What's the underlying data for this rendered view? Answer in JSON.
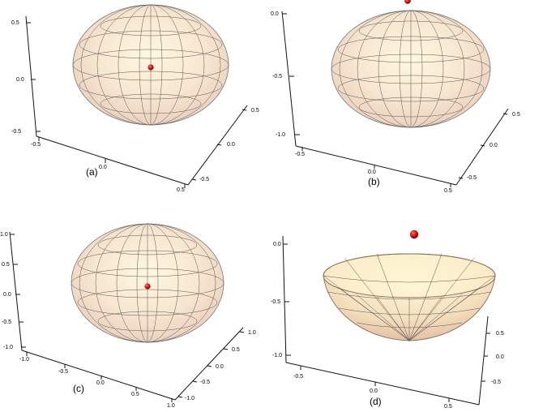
{
  "panels": [
    {
      "caption": "(a)",
      "shape": "ellipsoid",
      "vertical_ticks": [
        "0.5",
        "0.0",
        "-0.5"
      ],
      "front_axis_ticks": [
        "-0.5",
        "0.0",
        "0.5"
      ],
      "side_axis_ticks": [
        "0.5",
        "0.0",
        "-0.5"
      ],
      "point": "red sphere near center"
    },
    {
      "caption": "(b)",
      "shape": "ellipsoid",
      "vertical_ticks": [
        "0.0",
        "-0.5",
        "-1.0"
      ],
      "front_axis_ticks": [
        "-0.5",
        "0.0",
        "0.5"
      ],
      "side_axis_ticks": [
        "0.5",
        "0.0",
        "-0.5"
      ],
      "point": "red sphere at top"
    },
    {
      "caption": "(c)",
      "shape": "ellipsoid",
      "vertical_ticks": [
        "1.0",
        "0.5",
        "0.0",
        "-0.5",
        "-1.0"
      ],
      "front_axis_ticks": [
        "-1.0",
        "-0.5",
        "0.0",
        "0.5",
        "1.0"
      ],
      "side_axis_ticks": [
        "1.0",
        "0.5",
        "0.0",
        "-0.5",
        "-1.0"
      ],
      "point": "red sphere near center"
    },
    {
      "caption": "(d)",
      "shape": "bowl",
      "vertical_ticks": [
        "0.0",
        "-0.5",
        "-1.0"
      ],
      "front_axis_ticks": [
        "-0.5",
        "0.0",
        "0.5"
      ],
      "side_axis_ticks": [
        "0.5",
        "0.0",
        "-0.5"
      ],
      "point": "red sphere above bowl"
    }
  ],
  "colors": {
    "surface": "#f7e6cf",
    "mesh": "#555555",
    "point": "#cc1111",
    "axis": "#111111"
  }
}
